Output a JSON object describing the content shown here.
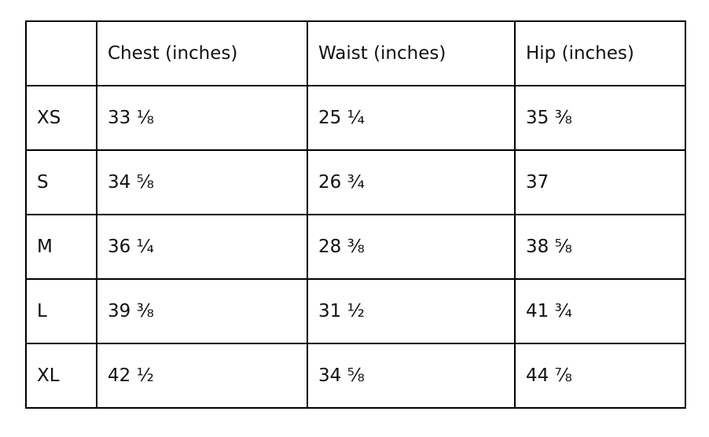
{
  "table": {
    "headers": [
      "Chest (inches)",
      "Waist (inches)",
      "Hip (inches)"
    ],
    "rows": [
      [
        "XS",
        "33 ⅛",
        "25 ¼",
        "35 ⅜"
      ],
      [
        "S",
        "34 ⅝",
        "26 ¾",
        "37"
      ],
      [
        "M",
        "36 ¼",
        "28 ⅜",
        "38 ⅝"
      ],
      [
        "L",
        "39 ⅜",
        "31 ½",
        "41 ¾"
      ],
      [
        "XL",
        "42 ½",
        "34 ⅝",
        "44 ⅞"
      ]
    ]
  }
}
